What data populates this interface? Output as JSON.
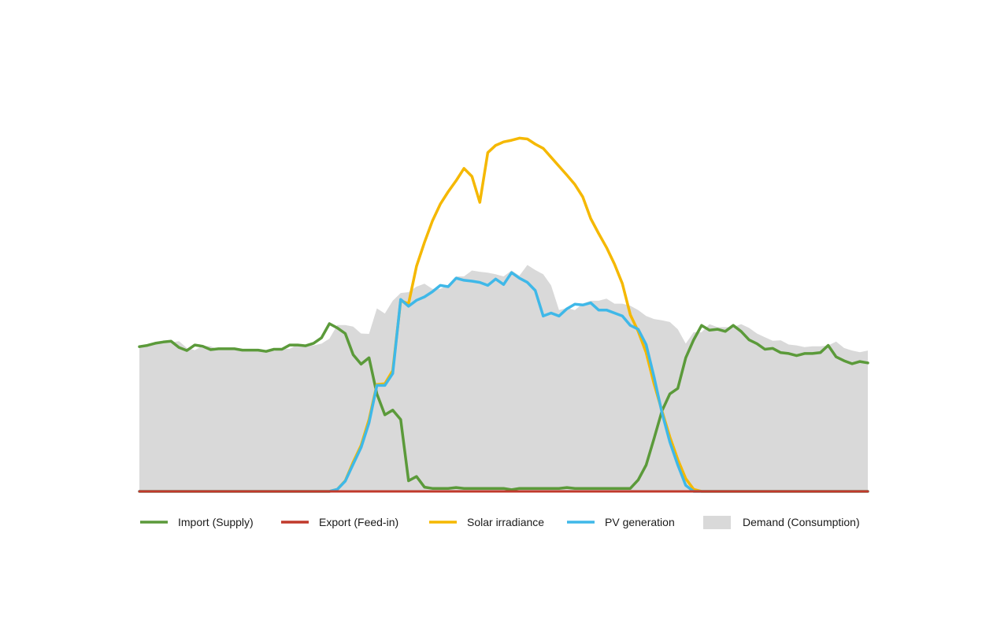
{
  "chart_data": {
    "type": "area",
    "title": "",
    "xlabel": "",
    "ylabel": "",
    "x_points": 93,
    "ylim": [
      0,
      100
    ],
    "grid": false,
    "legend_position": "bottom",
    "series": [
      {
        "name": "Demand (Consumption)",
        "kind": "area",
        "color": "#d9d9d9",
        "values": [
          34,
          34.3,
          34.6,
          34.8,
          35,
          35.3,
          33.7,
          33.2,
          34.2,
          34.1,
          33.3,
          33.5,
          33.5,
          33.5,
          33.3,
          33.2,
          33.2,
          33,
          33.5,
          33.5,
          34.5,
          34.5,
          34.3,
          34.7,
          35.9,
          39.1,
          39.1,
          38.7,
          37.1,
          37,
          43,
          41.8,
          44.8,
          46.6,
          46.8,
          48.1,
          48.8,
          47.6,
          47.6,
          48.4,
          50.5,
          50.5,
          51.9,
          51.6,
          51.4,
          51,
          50.5,
          51.9,
          50.7,
          53.2,
          52,
          51,
          48.4,
          42.6,
          43.1,
          42.6,
          44.1,
          44.8,
          44.8,
          45.3,
          44.1,
          44.1,
          43.6,
          42.6,
          41.2,
          40.5,
          40.2,
          39.8,
          38.1,
          34.7,
          37.4,
          37.4,
          39.3,
          38.6,
          38.6,
          38.6,
          39.3,
          38.4,
          37.1,
          36.2,
          35.4,
          35.5,
          34.5,
          34.3,
          33.9,
          34.1,
          34.1,
          34.3,
          35.2,
          33.7,
          33.1,
          32.7,
          33.1
        ]
      },
      {
        "name": "Import (Supply)",
        "kind": "line",
        "color": "#5b9a3a",
        "values": [
          34,
          34.3,
          34.8,
          35.1,
          35.3,
          33.8,
          33.1,
          34.4,
          34.1,
          33.3,
          33.5,
          33.5,
          33.5,
          33.2,
          33.2,
          33.2,
          32.9,
          33.4,
          33.4,
          34.4,
          34.4,
          34.2,
          34.8,
          36.1,
          39.4,
          38.4,
          37.1,
          32.1,
          29.9,
          31.4,
          22.9,
          18,
          19.1,
          16.9,
          2.5,
          3.5,
          1,
          0.7,
          0.7,
          0.7,
          0.9,
          0.7,
          0.7,
          0.7,
          0.7,
          0.7,
          0.7,
          0.4,
          0.7,
          0.7,
          0.7,
          0.7,
          0.7,
          0.7,
          0.9,
          0.7,
          0.7,
          0.7,
          0.7,
          0.7,
          0.7,
          0.7,
          0.7,
          2.7,
          6.2,
          12.4,
          18.9,
          22.9,
          24.2,
          31.4,
          35.6,
          39,
          37.9,
          38.1,
          37.6,
          39,
          37.6,
          35.6,
          34.7,
          33.4,
          33.6,
          32.6,
          32.4,
          31.9,
          32.4,
          32.4,
          32.6,
          34.3,
          31.6,
          30.7,
          30,
          30.5,
          30.2
        ]
      },
      {
        "name": "Export (Feed-in)",
        "kind": "line",
        "color": "#c0392b",
        "values": [
          0,
          0,
          0,
          0,
          0,
          0,
          0,
          0,
          0,
          0,
          0,
          0,
          0,
          0,
          0,
          0,
          0,
          0,
          0,
          0,
          0,
          0,
          0,
          0,
          0,
          0,
          0,
          0,
          0,
          0,
          0,
          0,
          0,
          0,
          0,
          0,
          0,
          0,
          0,
          0,
          0,
          0,
          0,
          0,
          0,
          0,
          0,
          0,
          0,
          0,
          0,
          0,
          0,
          0,
          0,
          0,
          0,
          0,
          0,
          0,
          0,
          0,
          0,
          0,
          0,
          0,
          0,
          0,
          0,
          0,
          0,
          0,
          0,
          0,
          0,
          0,
          0,
          0,
          0,
          0,
          0,
          0,
          0,
          0,
          0,
          0,
          0,
          0,
          0,
          0,
          0,
          0,
          0
        ]
      },
      {
        "name": "Solar irradiance",
        "kind": "line",
        "color": "#f5b800",
        "values": [
          0,
          0,
          0,
          0,
          0,
          0,
          0,
          0,
          0,
          0,
          0,
          0,
          0,
          0,
          0,
          0,
          0,
          0,
          0,
          0,
          0,
          0,
          0,
          0,
          0,
          0.5,
          2.5,
          6.9,
          10.8,
          16.9,
          25.1,
          25.3,
          28.4,
          44.8,
          44.1,
          52.9,
          58.5,
          63.5,
          67.5,
          70.4,
          73,
          75.9,
          74,
          67.9,
          79.6,
          81.3,
          82.1,
          82.5,
          83,
          82.8,
          81.6,
          80.6,
          78.5,
          76.4,
          74.3,
          72.1,
          69.2,
          64.1,
          60.6,
          57.3,
          53.4,
          48.8,
          41.5,
          37.6,
          32.6,
          25.3,
          18.9,
          12.8,
          7.5,
          3,
          0.5,
          0,
          0,
          0,
          0,
          0,
          0,
          0,
          0,
          0,
          0,
          0,
          0,
          0,
          0,
          0,
          0,
          0,
          0,
          0,
          0,
          0,
          0
        ]
      },
      {
        "name": "PV generation",
        "kind": "line",
        "color": "#3fb8e8",
        "values": [
          0,
          0,
          0,
          0,
          0,
          0,
          0,
          0,
          0,
          0,
          0,
          0,
          0,
          0,
          0,
          0,
          0,
          0,
          0,
          0,
          0,
          0,
          0,
          0,
          0,
          0.5,
          2.4,
          6.4,
          10.3,
          16.1,
          24.9,
          24.9,
          27.7,
          45.1,
          43.5,
          44.9,
          45.7,
          46.9,
          48.4,
          48.1,
          50.1,
          49.6,
          49.4,
          49.1,
          48.4,
          49.9,
          48.6,
          51.4,
          50.1,
          49.1,
          47.2,
          41.2,
          41.9,
          41.2,
          42.9,
          44,
          43.8,
          44.3,
          42.6,
          42.6,
          41.9,
          41.2,
          39,
          38.1,
          34.5,
          26.9,
          18.5,
          11.6,
          6.2,
          1.4,
          0,
          0,
          0,
          0,
          0,
          0,
          0,
          0,
          0,
          0,
          0,
          0,
          0,
          0,
          0,
          0,
          0,
          0,
          0,
          0,
          0,
          0,
          0
        ]
      }
    ],
    "legend": [
      {
        "label": "Import (Supply)",
        "color": "#5b9a3a",
        "kind": "line"
      },
      {
        "label": "Export (Feed-in)",
        "color": "#c0392b",
        "kind": "line"
      },
      {
        "label": "Solar irradiance",
        "color": "#f5b800",
        "kind": "line"
      },
      {
        "label": "PV generation",
        "color": "#3fb8e8",
        "kind": "line"
      },
      {
        "label": "Demand (Consumption)",
        "color": "#d9d9d9",
        "kind": "area"
      }
    ]
  }
}
